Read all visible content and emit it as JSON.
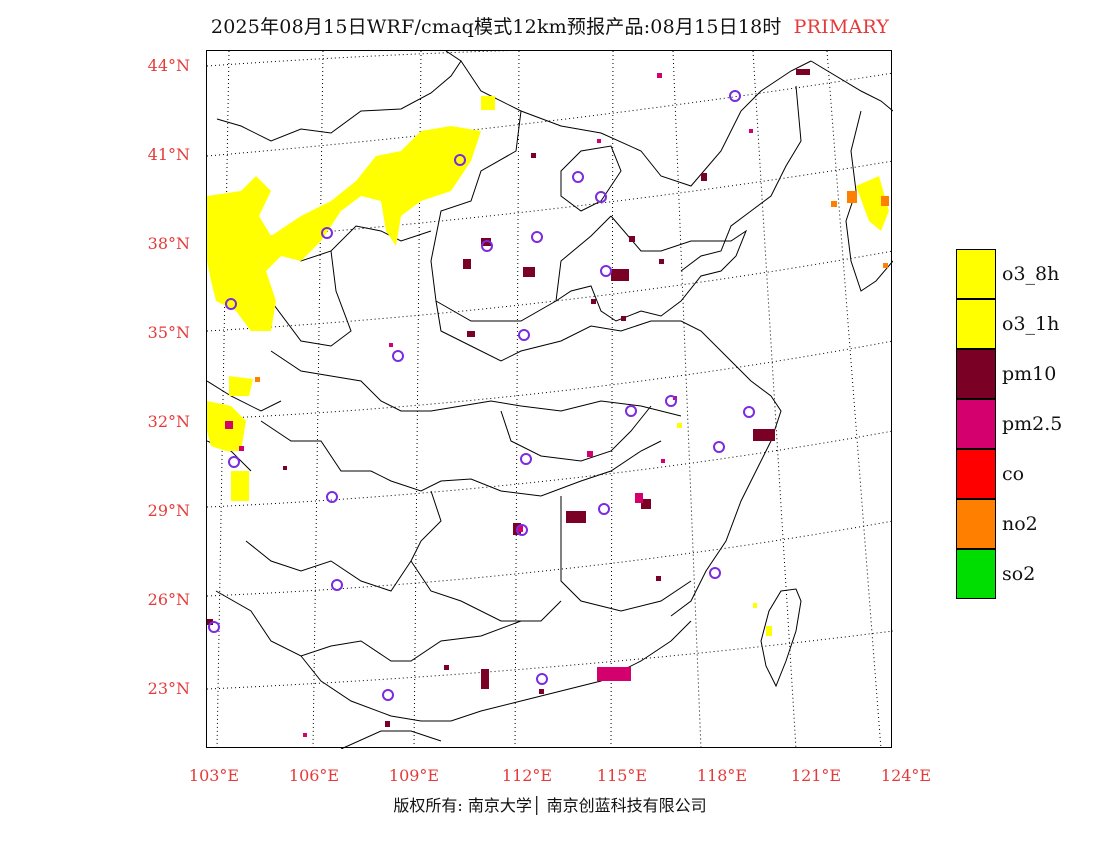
{
  "title": {
    "main": "2025年08月15日WRF/cmaq模式12km预报产品:08月15日18时",
    "tag": "PRIMARY"
  },
  "axes": {
    "latitudes": [
      "44°N",
      "41°N",
      "38°N",
      "35°N",
      "32°N",
      "29°N",
      "26°N",
      "23°N"
    ],
    "longitudes": [
      "103°E",
      "106°E",
      "109°E",
      "112°E",
      "115°E",
      "118°E",
      "121°E",
      "124°E"
    ]
  },
  "legend": [
    {
      "label": "o3_8h",
      "color": "#ffff00"
    },
    {
      "label": "o3_1h",
      "color": "#ffff00"
    },
    {
      "label": "pm10",
      "color": "#7a0026"
    },
    {
      "label": "pm2.5",
      "color": "#d4006e"
    },
    {
      "label": "co",
      "color": "#ff0000"
    },
    {
      "label": "no2",
      "color": "#ff7f00"
    },
    {
      "label": "so2",
      "color": "#00dd00"
    }
  ],
  "footer": "版权所有: 南京大学│ 南京创蓝科技有限公司",
  "colors": {
    "label_red": "#e43a3a",
    "o3": "#ffff00",
    "pm10": "#7a0026",
    "pm25": "#d4006e",
    "no2": "#ff7f00",
    "station_ring": "#7b2be0"
  }
}
